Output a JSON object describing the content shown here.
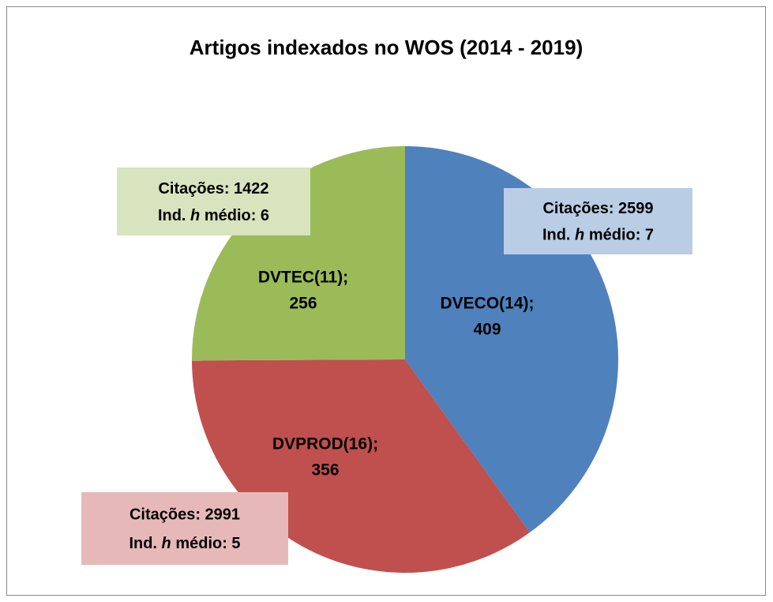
{
  "chart_data": {
    "type": "pie",
    "title": "Artigos indexados no WOS (2014 - 2019)",
    "categories": [
      "DVECO(14);",
      "DVPROD(16);",
      "DVTEC(11);"
    ],
    "values": [
      409,
      356,
      256
    ],
    "colors": [
      "#4f81bd",
      "#c0504d",
      "#9bbb59"
    ],
    "annotations": [
      {
        "citations": "Citações: 2599",
        "index_prefix": "Ind. ",
        "index_italic": "h",
        "index_suffix": " médio: 7",
        "color": "#b9cde5"
      },
      {
        "citations": "Citações: 2991",
        "index_prefix": "Ind. ",
        "index_italic": "h",
        "index_suffix": " médio: 5",
        "color": "#e6b9b8"
      },
      {
        "citations": "Citações: 1422",
        "index_prefix": "Ind. ",
        "index_italic": "h",
        "index_suffix": " médio: 6",
        "color": "#d7e4bd"
      }
    ]
  }
}
